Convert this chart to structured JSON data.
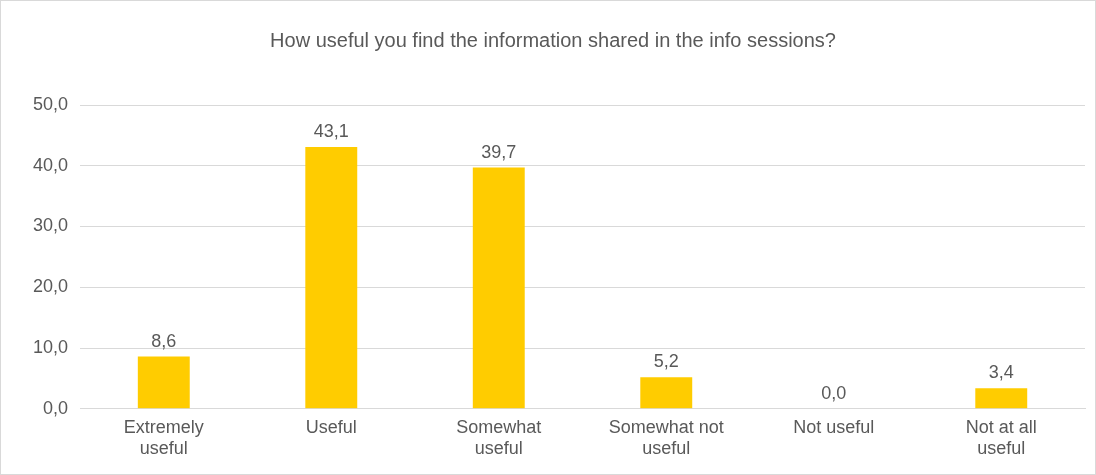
{
  "chart_data": {
    "type": "bar",
    "title": "How useful you find the information shared in the info sessions?",
    "categories": [
      "Extremely useful",
      "Useful",
      "Somewhat useful",
      "Somewhat not useful",
      "Not useful",
      "Not at all useful"
    ],
    "values": [
      8.6,
      43.1,
      39.7,
      5.2,
      0.0,
      3.4
    ],
    "value_labels": [
      "8,6",
      "43,1",
      "39,7",
      "5,2",
      "0,0",
      "3,4"
    ],
    "color": "#ffcc00",
    "ylim": [
      0,
      50
    ],
    "yticks": [
      {
        "value": 0,
        "label": "0,0"
      },
      {
        "value": 10,
        "label": "10,0"
      },
      {
        "value": 20,
        "label": "20,0"
      },
      {
        "value": 30,
        "label": "30,0"
      },
      {
        "value": 40,
        "label": "40,0"
      },
      {
        "value": 50,
        "label": "50,0"
      }
    ],
    "grid": "y",
    "legend": false
  }
}
